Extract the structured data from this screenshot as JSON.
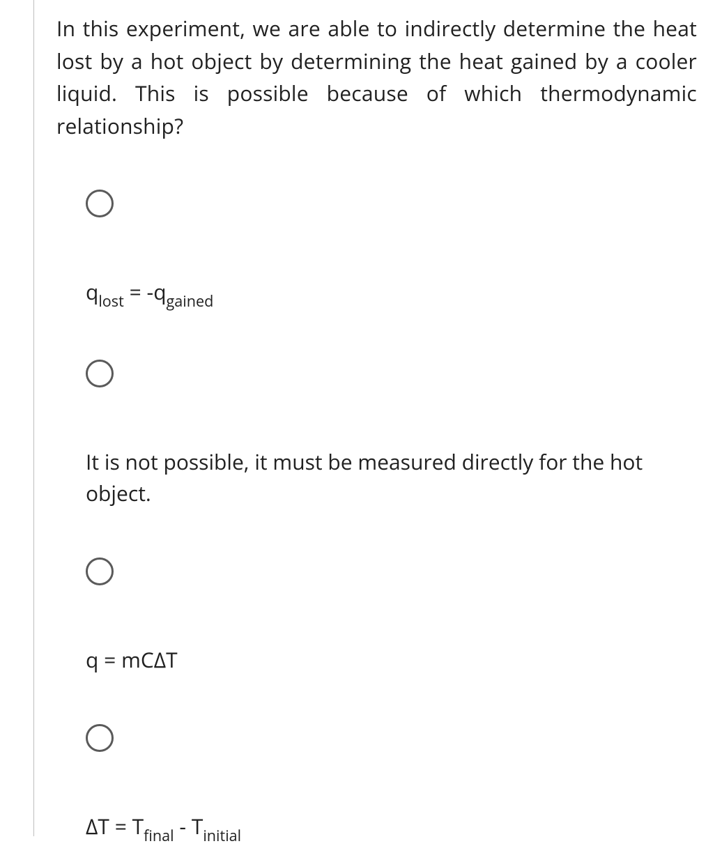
{
  "question": {
    "text": "In this experiment, we are able to indirectly determine the heat lost by a hot object by determining the heat gained by a cooler liquid. This is possible because of which thermodynamic relationship?"
  },
  "options": [
    {
      "kind": "formula",
      "parts": [
        "q",
        "lost",
        " = -q",
        "gained"
      ],
      "sub_indices": [
        1,
        3
      ]
    },
    {
      "kind": "plain",
      "text": "It is not possible, it must be measured directly for the hot object."
    },
    {
      "kind": "plain",
      "text": "q = mCΔT"
    },
    {
      "kind": "formula",
      "parts": [
        "ΔT = T",
        "final",
        " - T",
        "initial"
      ],
      "sub_indices": [
        1,
        3
      ]
    }
  ],
  "style": {
    "text_color": "#212121",
    "radio_border_color": "#5a5a5a",
    "divider_color": "#bfbfbf",
    "background_color": "#ffffff",
    "font_size_pt": 22
  }
}
